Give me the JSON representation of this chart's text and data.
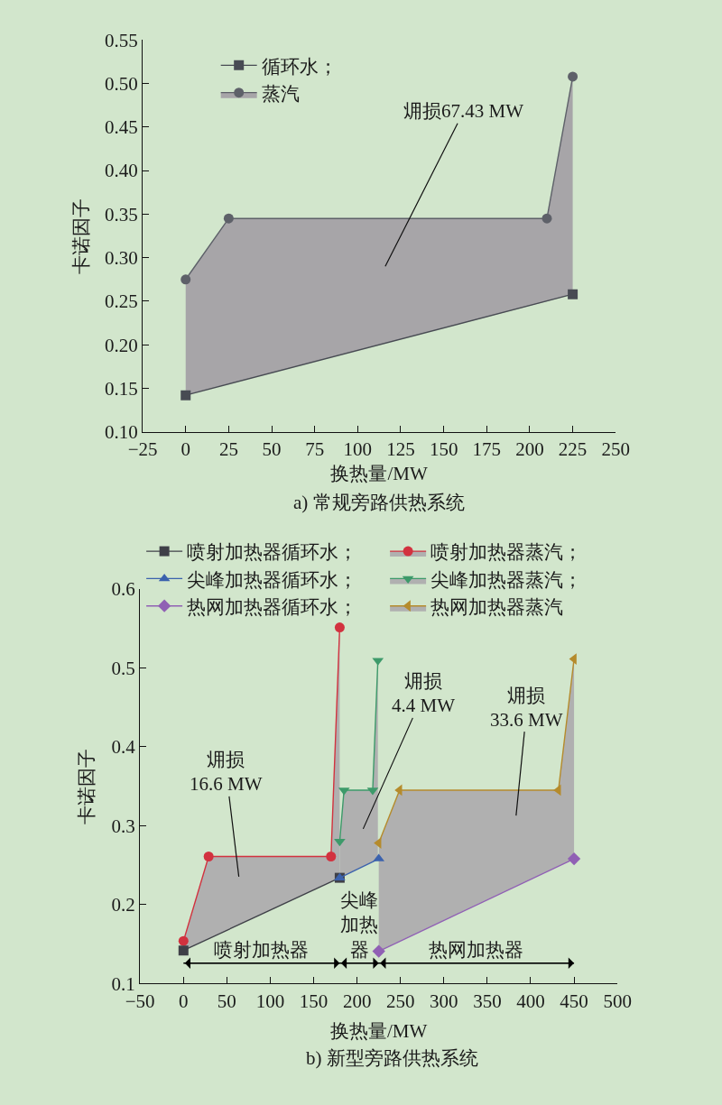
{
  "chart_data": [
    {
      "type": "line",
      "title": "a) 常规旁路供热系统",
      "xlabel": "换热量/MW",
      "ylabel": "卡诺因子",
      "xlim": [
        -25,
        250
      ],
      "xticks": [
        {
          "value": -25,
          "label": "−25"
        },
        0,
        25,
        50,
        75,
        100,
        125,
        150,
        175,
        200,
        225,
        250
      ],
      "ylim": [
        0.1,
        0.55
      ],
      "yticks": [
        {
          "value": 0.1,
          "label": "0.10"
        },
        0.15,
        {
          "value": 0.2,
          "label": "0.20"
        },
        0.25,
        {
          "value": 0.3,
          "label": "0.30"
        },
        0.35,
        {
          "value": 0.4,
          "label": "0.40"
        },
        0.45,
        {
          "value": 0.5,
          "label": "0.50"
        },
        0.55
      ],
      "legend": "top left",
      "annotations": [
        "㶲损67.43 MW"
      ],
      "series": [
        {
          "name": "循环水；",
          "color": "#484b53",
          "marker": "square",
          "x": [
            0,
            225
          ],
          "values": [
            0.142,
            0.258
          ]
        },
        {
          "name": "蒸汽",
          "color": "#5e6169",
          "marker": "circle",
          "x": [
            0,
            25,
            210,
            225
          ],
          "values": [
            0.275,
            0.345,
            0.345,
            0.508
          ],
          "lower": [
            0.142,
            0.155,
            0.25,
            0.258
          ],
          "upper": [
            0.275,
            0.345,
            0.345,
            0.508
          ]
        }
      ]
    },
    {
      "type": "line",
      "title": "b) 新型旁路供热系统",
      "xlabel": "换热量/MW",
      "ylabel": "卡诺因子",
      "xlim": [
        -50,
        500
      ],
      "xticks": [
        {
          "value": -50,
          "label": "−50"
        },
        0,
        50,
        100,
        150,
        200,
        250,
        300,
        350,
        400,
        450,
        500
      ],
      "ylim": [
        0.1,
        0.6
      ],
      "yticks": [
        0.1,
        0.2,
        0.3,
        0.4,
        0.5,
        0.6
      ],
      "legend": "top",
      "annotations": [
        "㶲损\n16.6 MW",
        "㶲损\n4.4 MW",
        "㶲损\n33.6 MW",
        {
          "text": "喷射加热器",
          "x": 90,
          "y": 0.126
        },
        {
          "text": "尖峰加热器",
          "x": 202.5,
          "y": 0.126
        },
        {
          "text": "热网加热器",
          "x": 337.5,
          "y": 0.126
        }
      ],
      "series": [
        {
          "name": "喷射加热器循环水；",
          "color": "#3f4048",
          "marker": "square",
          "x": [
            0,
            180
          ],
          "values": [
            0.142,
            0.234
          ]
        },
        {
          "name": "喷射加热器蒸汽；",
          "color": "#d2323f",
          "marker": "circle",
          "x": [
            0,
            29,
            170,
            180
          ],
          "values": [
            0.154,
            0.261,
            0.261,
            0.551
          ],
          "lower": [
            0.142,
            0.157,
            0.229,
            0.234
          ],
          "upper": [
            0.154,
            0.261,
            0.261,
            0.551
          ]
        },
        {
          "name": "尖峰加热器循环水；",
          "color": "#3b62ad",
          "marker": "triangle",
          "x": [
            180,
            225
          ],
          "values": [
            0.234,
            0.258
          ]
        },
        {
          "name": "尖峰加热器蒸汽；",
          "color": "#3d9a6a",
          "marker": "triangle-down",
          "x": [
            180,
            185,
            218,
            224
          ],
          "values": [
            0.28,
            0.345,
            0.345,
            0.509
          ],
          "lower": [
            0.234,
            0.237,
            0.254,
            0.257
          ],
          "upper": [
            0.28,
            0.345,
            0.345,
            0.509
          ]
        },
        {
          "name": "热网加热器循环水；",
          "color": "#9060b4",
          "marker": "diamond",
          "x": [
            225,
            450
          ],
          "values": [
            0.141,
            0.258
          ]
        },
        {
          "name": "热网加热器蒸汽",
          "color": "#b58b2c",
          "marker": "triangle-left",
          "x": [
            225,
            249,
            432,
            450
          ],
          "values": [
            0.278,
            0.345,
            0.345,
            0.511
          ],
          "lower": [
            0.141,
            0.154,
            0.249,
            0.258
          ],
          "upper": [
            0.278,
            0.345,
            0.345,
            0.511
          ]
        },
        {
          "color": "#000000",
          "marker": "none",
          "x": [
            0,
            180,
            225,
            450
          ],
          "values": [
            0.126,
            0.126,
            0.126,
            0.126
          ]
        }
      ]
    }
  ]
}
